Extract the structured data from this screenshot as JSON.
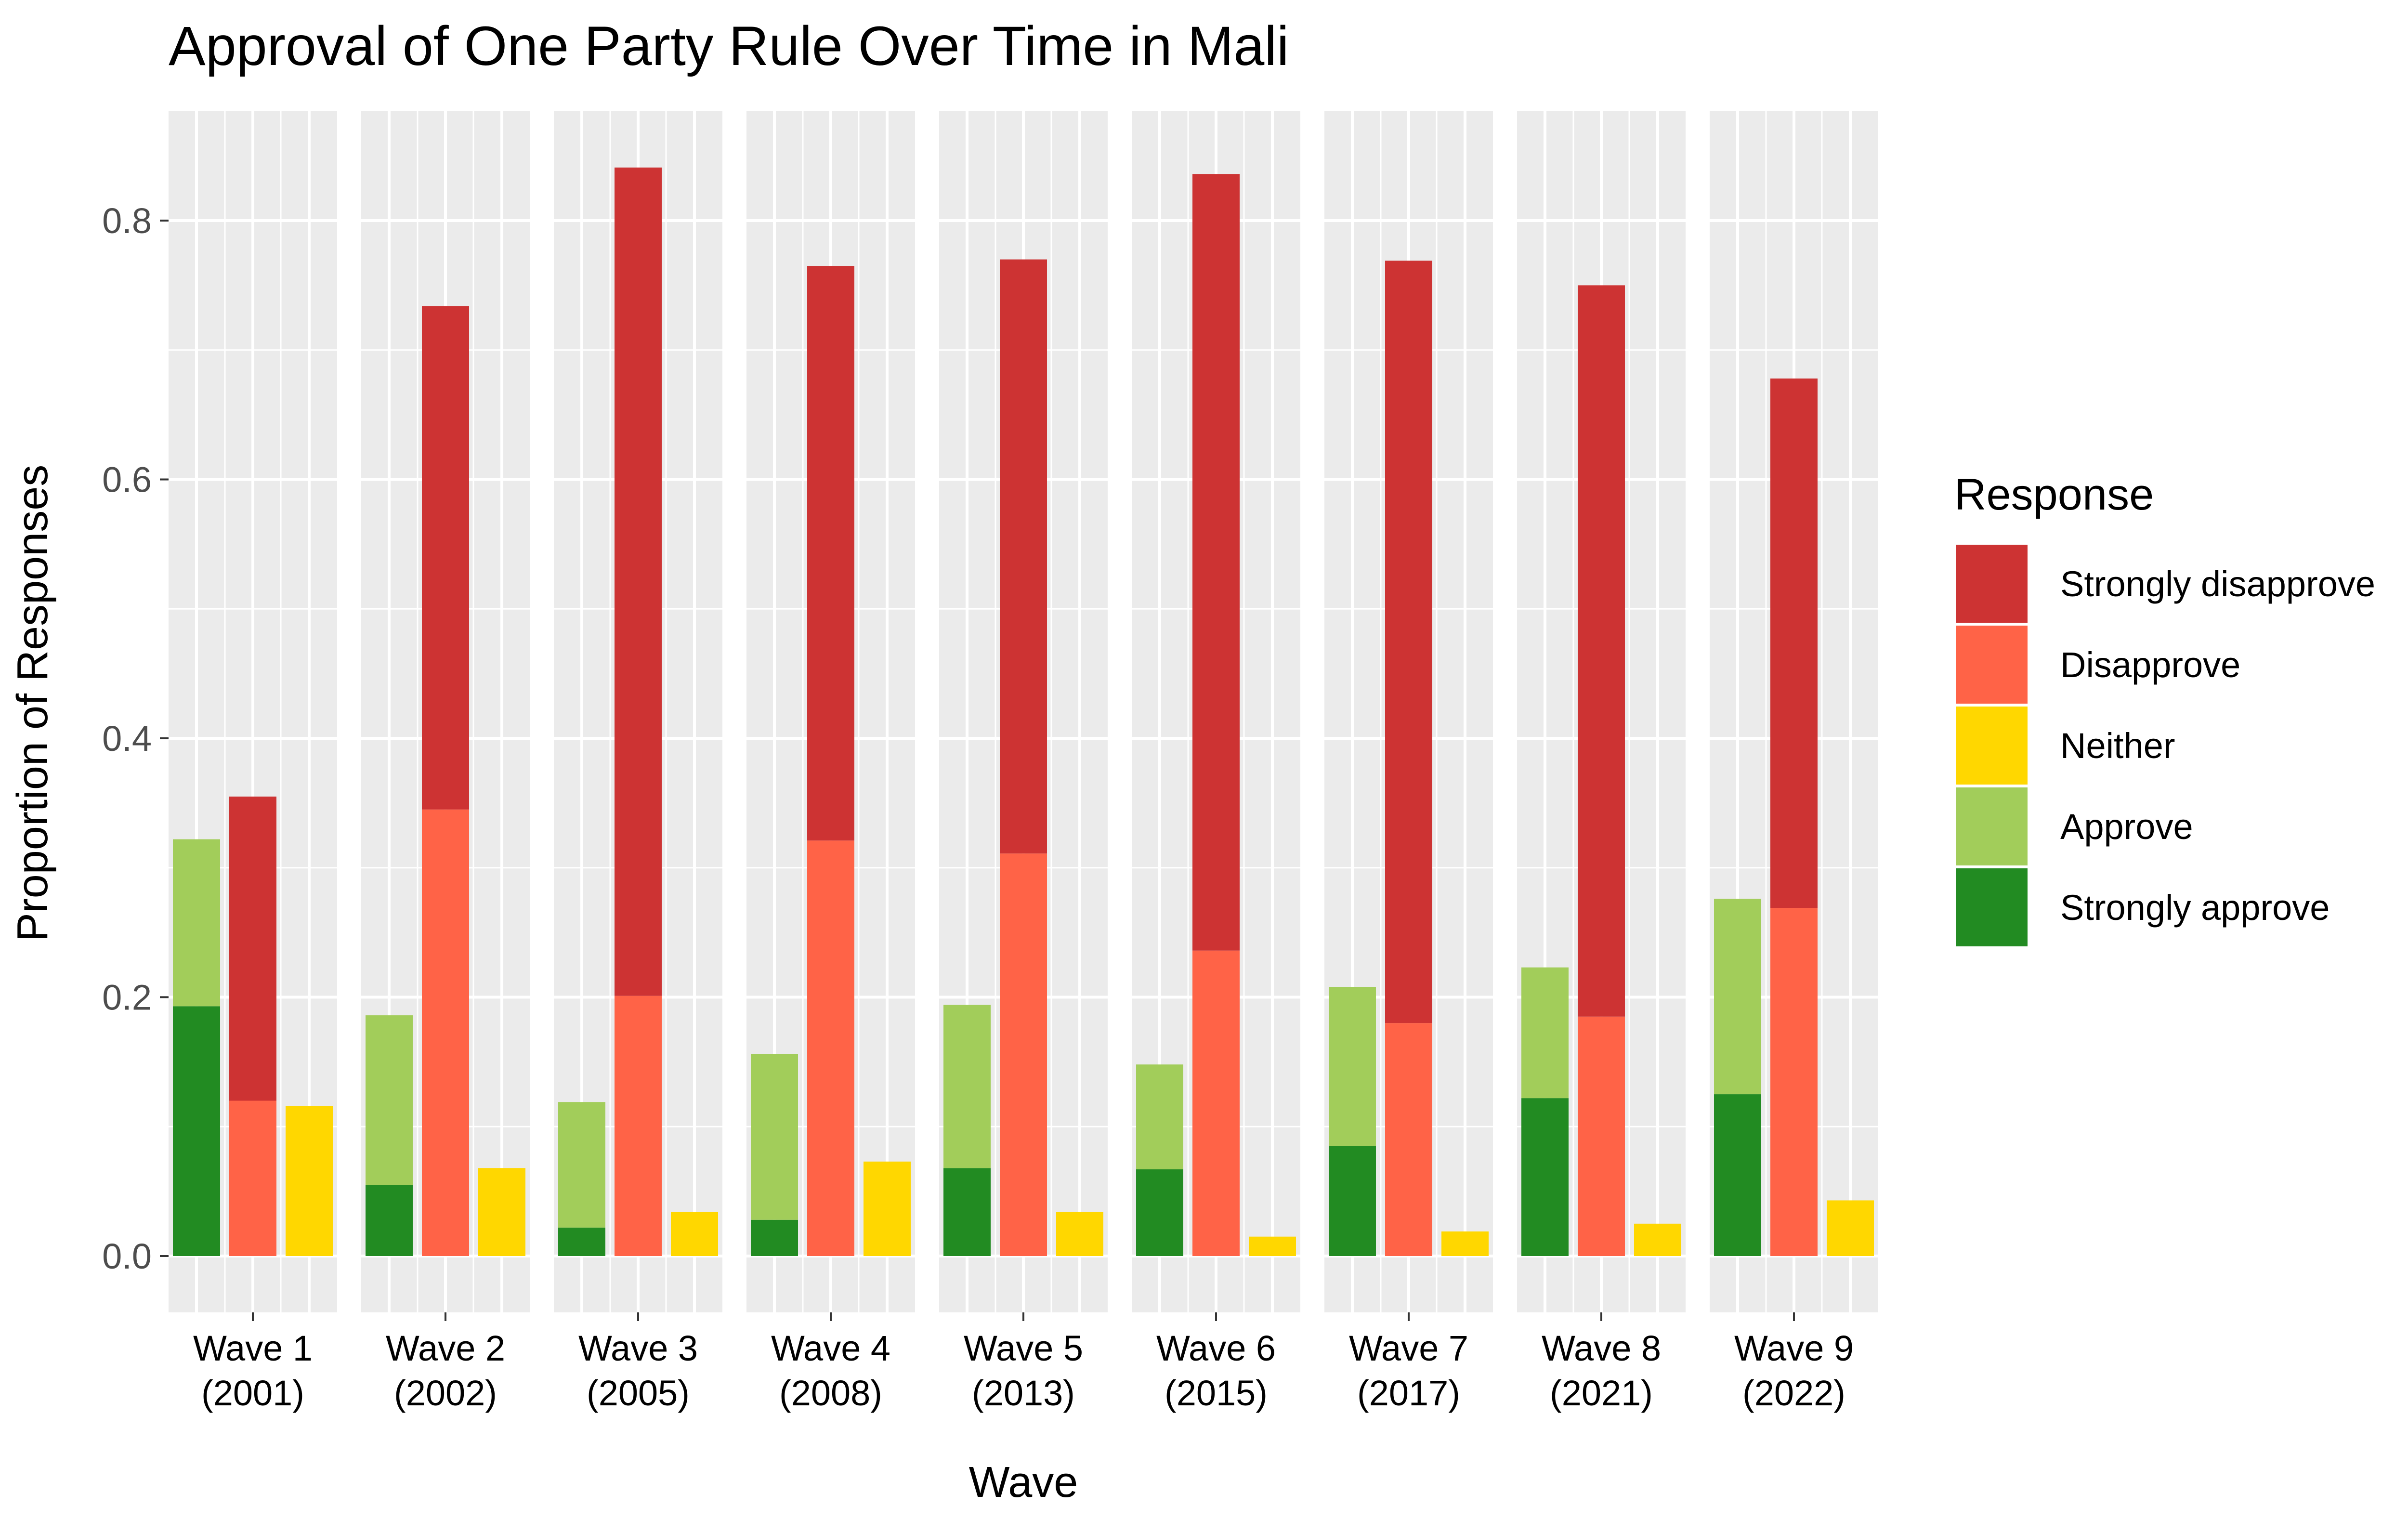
{
  "chart_data": {
    "type": "bar",
    "title": "Approval of One Party Rule Over Time in Mali",
    "xlabel": "Wave",
    "ylabel": "Proportion of Responses",
    "ylim": [
      -0.04,
      0.88
    ],
    "yticks": [
      "0.0",
      "0.2",
      "0.4",
      "0.6",
      "0.8"
    ],
    "grid": true,
    "legend_position": "right",
    "legend": {
      "title": "Response",
      "items": [
        {
          "label": "Strongly disapprove",
          "color": "#cd3333"
        },
        {
          "label": "Disapprove",
          "color": "#ff6347"
        },
        {
          "label": "Neither",
          "color": "#ffd700"
        },
        {
          "label": "Approve",
          "color": "#a2cd5a"
        },
        {
          "label": "Strongly approve",
          "color": "#228b22"
        }
      ]
    },
    "groups": [
      {
        "label_line1": "Wave 1",
        "label_line2": "(2001)",
        "strongly_approve": 0.193,
        "approve": 0.129,
        "disapprove": 0.12,
        "strongly_disapprove": 0.235,
        "neither": 0.116
      },
      {
        "label_line1": "Wave 2",
        "label_line2": "(2002)",
        "strongly_approve": 0.055,
        "approve": 0.131,
        "disapprove": 0.345,
        "strongly_disapprove": 0.389,
        "neither": 0.068
      },
      {
        "label_line1": "Wave 3",
        "label_line2": "(2005)",
        "strongly_approve": 0.022,
        "approve": 0.097,
        "disapprove": 0.201,
        "strongly_disapprove": 0.64,
        "neither": 0.034
      },
      {
        "label_line1": "Wave 4",
        "label_line2": "(2008)",
        "strongly_approve": 0.028,
        "approve": 0.128,
        "disapprove": 0.321,
        "strongly_disapprove": 0.444,
        "neither": 0.073
      },
      {
        "label_line1": "Wave 5",
        "label_line2": "(2013)",
        "strongly_approve": 0.068,
        "approve": 0.126,
        "disapprove": 0.311,
        "strongly_disapprove": 0.459,
        "neither": 0.034
      },
      {
        "label_line1": "Wave 6",
        "label_line2": "(2015)",
        "strongly_approve": 0.067,
        "approve": 0.081,
        "disapprove": 0.236,
        "strongly_disapprove": 0.6,
        "neither": 0.015
      },
      {
        "label_line1": "Wave 7",
        "label_line2": "(2017)",
        "strongly_approve": 0.085,
        "approve": 0.123,
        "disapprove": 0.18,
        "strongly_disapprove": 0.589,
        "neither": 0.019
      },
      {
        "label_line1": "Wave 8",
        "label_line2": "(2021)",
        "strongly_approve": 0.122,
        "approve": 0.101,
        "disapprove": 0.185,
        "strongly_disapprove": 0.565,
        "neither": 0.025
      },
      {
        "label_line1": "Wave 9",
        "label_line2": "(2022)",
        "strongly_approve": 0.125,
        "approve": 0.151,
        "disapprove": 0.269,
        "strongly_disapprove": 0.409,
        "neither": 0.043
      }
    ]
  }
}
